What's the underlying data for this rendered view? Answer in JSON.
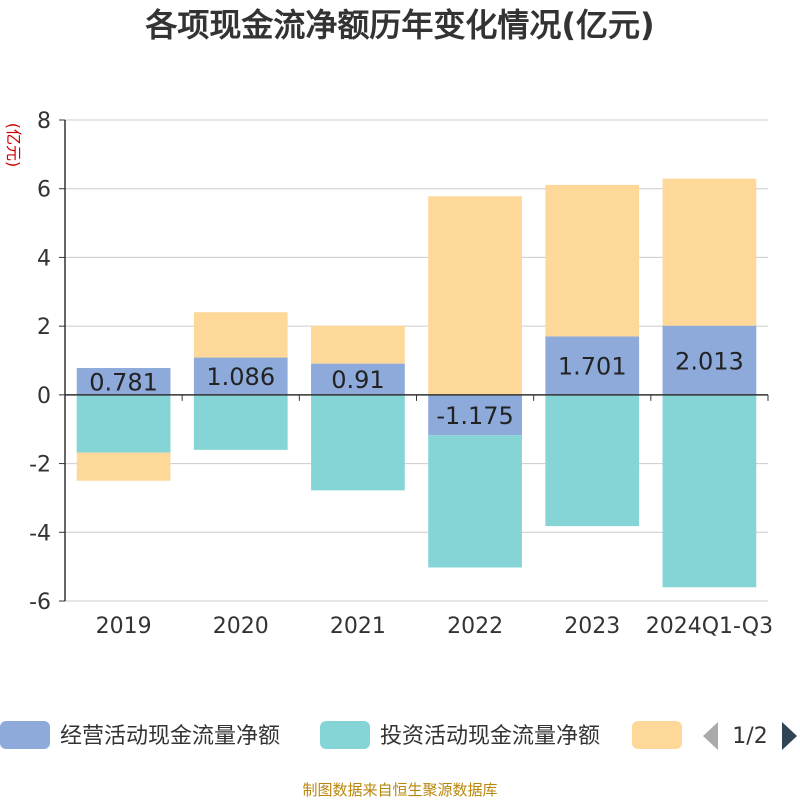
{
  "chart_data": {
    "type": "bar",
    "stacked": true,
    "title": "各项现金流净额历年变化情况(亿元)",
    "ylabel": "(亿元)",
    "categories": [
      "2019",
      "2020",
      "2021",
      "2022",
      "2023",
      "2024Q1-Q3"
    ],
    "ylim": [
      -6,
      8
    ],
    "yticks": [
      -6,
      -4,
      -2,
      0,
      2,
      4,
      6,
      8
    ],
    "grid": true,
    "series": [
      {
        "name": "经营活动现金流量净额",
        "color": "#8eaadb",
        "values": [
          0.781,
          1.086,
          0.91,
          -1.175,
          1.701,
          2.013
        ],
        "labels": [
          "0.781",
          "1.086",
          "0.91",
          "-1.175",
          "1.701",
          "2.013"
        ]
      },
      {
        "name": "投资活动现金流量净额",
        "color": "#86d5d6",
        "values": [
          -1.68,
          -1.6,
          -2.78,
          -3.85,
          -3.82,
          -5.6
        ]
      },
      {
        "name": "",
        "color": "#fed898",
        "values": [
          -0.82,
          1.32,
          1.1,
          5.78,
          4.41,
          4.28
        ]
      }
    ],
    "legend": {
      "position": "bottom",
      "page": "1/2"
    }
  },
  "source_text": "制图数据来自恒生聚源数据库"
}
